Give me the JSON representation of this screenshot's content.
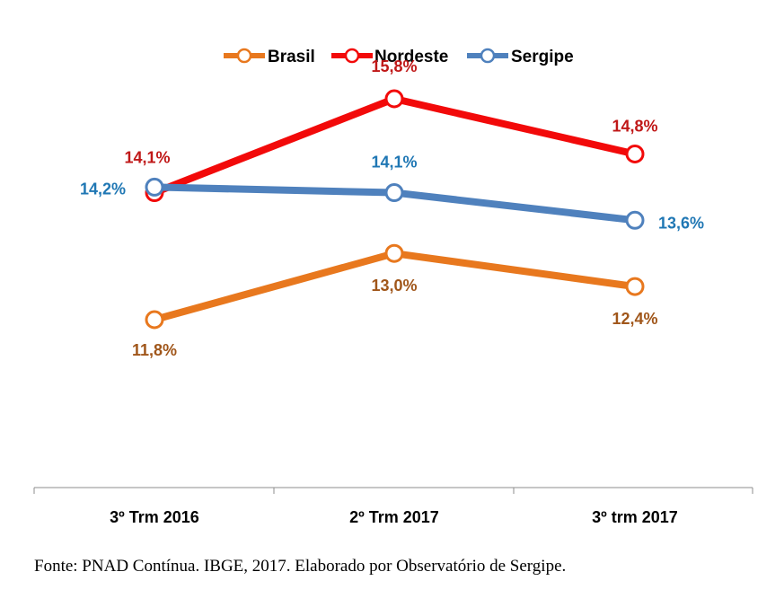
{
  "chart_data": {
    "type": "line",
    "categories": [
      "3º Trm 2016",
      "2º Trm 2017",
      "3º trm 2017"
    ],
    "series": [
      {
        "name": "Brasil",
        "values": [
          11.8,
          13.0,
          12.4
        ],
        "labels": [
          "11,8%",
          "13,0%",
          "12,4%"
        ],
        "color": "#E8781E",
        "label_color": "#A0561A"
      },
      {
        "name": "Nordeste",
        "values": [
          14.1,
          15.8,
          14.8
        ],
        "labels": [
          "14,1%",
          "15,8%",
          "14,8%"
        ],
        "color": "#F20A0A",
        "label_color": "#C01818"
      },
      {
        "name": "Sergipe",
        "values": [
          14.2,
          14.1,
          13.6
        ],
        "labels": [
          "14,2%",
          "14,1%",
          "13,6%"
        ],
        "color": "#4F81BD",
        "label_color": "#1F77B4"
      }
    ],
    "legend_position": "top-center",
    "grid": false
  },
  "source": "Fonte: PNAD Contínua. IBGE, 2017. Elaborado por Observatório de Sergipe."
}
